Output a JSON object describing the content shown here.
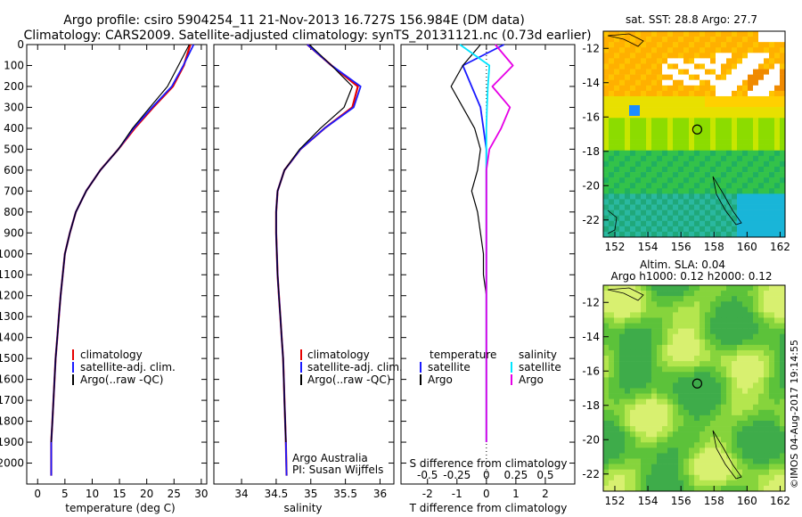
{
  "header": {
    "line1": "Argo profile: csiro 5904254_11 21-Nov-2013 16.727S 156.984E (DM data)",
    "line2": "Climatology: CARS2009. Satellite-adjusted climatology: synTS_20131121.nc (0.73d earlier)"
  },
  "colors": {
    "climatology": "#e60000",
    "satellite": "#1a1aff",
    "argo": "#000000",
    "sal_satellite": "#00e5ff",
    "sal_argo": "#e600e6"
  },
  "depth_ticks": [
    "0",
    "100",
    "200",
    "300",
    "400",
    "500",
    "600",
    "700",
    "800",
    "900",
    "1000",
    "1100",
    "1200",
    "1300",
    "1400",
    "1500",
    "1600",
    "1700",
    "1800",
    "1900",
    "2000"
  ],
  "legend": {
    "climatology": "climatology",
    "satellite_adj": "satellite-adj. clim.",
    "argo": "Argo(..raw -QC)",
    "temperature": "temperature",
    "salinity": "salinity",
    "satellite": "satellite",
    "argo_short": "Argo"
  },
  "credits": {
    "org": "Argo Australia",
    "pi": "PI: Susan Wijffels",
    "imos": "©IMOS 04-Aug-2017 19:14:55"
  },
  "maps": {
    "sst_title": "sat. SST: 28.8 Argo: 27.7",
    "sla_title1": "Altim. SLA: 0.04",
    "sla_title2": "Argo h1000: 0.12 h2000: 0.12",
    "lat_ticks": [
      "-12",
      "-14",
      "-16",
      "-18",
      "-20",
      "-22"
    ],
    "lon_ticks": [
      "152",
      "154",
      "156",
      "158",
      "160",
      "162"
    ],
    "argo_lat": -16.727,
    "argo_lon": 156.984
  },
  "chart_data": [
    {
      "type": "line",
      "xlabel": "temperature (deg C)",
      "xlim": [
        -2,
        31
      ],
      "xticks": [
        "0",
        "5",
        "10",
        "15",
        "20",
        "25",
        "30"
      ],
      "ylim": [
        2100,
        0
      ],
      "series": [
        {
          "name": "climatology",
          "x": [
            28.0,
            26.8,
            24.8,
            21.2,
            17.8,
            14.8,
            11.5,
            8.9,
            7.0,
            5.9,
            5.0,
            4.6,
            4.2,
            3.9,
            3.6,
            3.3,
            3.1,
            2.9,
            2.7,
            2.5,
            2.5
          ],
          "y": [
            0,
            100,
            200,
            300,
            400,
            500,
            600,
            700,
            800,
            900,
            1000,
            1100,
            1200,
            1300,
            1400,
            1500,
            1600,
            1700,
            1800,
            1900,
            2060
          ]
        },
        {
          "name": "satellite-adj. clim.",
          "x": [
            28.6,
            26.7,
            24.6,
            21.0,
            17.6,
            14.8,
            11.5,
            8.9,
            7.0,
            5.9,
            5.0,
            4.6,
            4.2,
            3.9,
            3.6,
            3.3,
            3.1,
            2.9,
            2.7,
            2.5,
            2.5
          ],
          "y": [
            0,
            100,
            200,
            300,
            400,
            500,
            600,
            700,
            800,
            900,
            1000,
            1100,
            1200,
            1300,
            1400,
            1500,
            1600,
            1700,
            1800,
            1900,
            2060
          ]
        },
        {
          "name": "Argo(..raw -QC)",
          "x": [
            27.8,
            25.8,
            23.8,
            20.6,
            17.4,
            14.8,
            11.5,
            8.9,
            7.0,
            5.9,
            5.0,
            4.6,
            4.2,
            3.9,
            3.6,
            3.3,
            3.1,
            2.9,
            2.7,
            2.5
          ],
          "y": [
            0,
            100,
            200,
            300,
            400,
            500,
            600,
            700,
            800,
            900,
            1000,
            1100,
            1200,
            1300,
            1400,
            1500,
            1600,
            1700,
            1800,
            1900
          ]
        }
      ]
    },
    {
      "type": "line",
      "xlabel": "salinity",
      "xlim": [
        33.6,
        36.2
      ],
      "xticks": [
        "34",
        "34.5",
        "35",
        "35.5",
        "36"
      ],
      "ylim": [
        2100,
        0
      ],
      "series": [
        {
          "name": "climatology",
          "x": [
            34.95,
            35.3,
            35.68,
            35.6,
            35.2,
            34.85,
            34.62,
            34.52,
            34.5,
            34.5,
            34.51,
            34.52,
            34.54,
            34.56,
            34.58,
            34.6,
            34.61,
            34.62,
            34.63,
            34.64,
            34.65
          ],
          "y": [
            0,
            100,
            200,
            300,
            400,
            500,
            600,
            700,
            800,
            900,
            1000,
            1100,
            1200,
            1300,
            1400,
            1500,
            1600,
            1700,
            1800,
            1900,
            2060
          ]
        },
        {
          "name": "satellite-adj. clim.",
          "x": [
            34.95,
            35.3,
            35.72,
            35.62,
            35.2,
            34.85,
            34.62,
            34.52,
            34.5,
            34.5,
            34.51,
            34.52,
            34.54,
            34.56,
            34.58,
            34.6,
            34.61,
            34.62,
            34.63,
            34.64,
            34.65
          ],
          "y": [
            0,
            100,
            200,
            300,
            400,
            500,
            600,
            700,
            800,
            900,
            1000,
            1100,
            1200,
            1300,
            1400,
            1500,
            1600,
            1700,
            1800,
            1900,
            2060
          ]
        },
        {
          "name": "Argo(..raw -QC)",
          "x": [
            34.98,
            35.3,
            35.6,
            35.48,
            35.14,
            34.84,
            34.62,
            34.52,
            34.5,
            34.5,
            34.51,
            34.52,
            34.54,
            34.56,
            34.58,
            34.6,
            34.61,
            34.62,
            34.63,
            34.64
          ],
          "y": [
            0,
            100,
            200,
            300,
            400,
            500,
            600,
            700,
            800,
            900,
            1000,
            1100,
            1200,
            1300,
            1400,
            1500,
            1600,
            1700,
            1800,
            1900
          ]
        }
      ]
    },
    {
      "type": "line",
      "xlabel": "T difference from climatology",
      "xlabel_top": "S difference from climatology",
      "xlim": [
        -2.9,
        3.0
      ],
      "xticks": [
        "-2",
        "-1",
        "0",
        "1",
        "2"
      ],
      "xticks_top": [
        "-0.5",
        "-0.25",
        "0",
        "0.25",
        "0.5"
      ],
      "ylim": [
        2100,
        0
      ],
      "series": [
        {
          "name": "temperature satellite",
          "x": [
            0.6,
            -0.8,
            -0.5,
            -0.2,
            -0.1,
            0,
            0,
            0,
            0,
            0,
            0,
            0,
            0,
            0,
            0,
            0,
            0,
            0,
            0,
            0
          ],
          "y": [
            0,
            100,
            200,
            300,
            400,
            500,
            600,
            700,
            800,
            900,
            1000,
            1100,
            1200,
            1300,
            1400,
            1500,
            1600,
            1700,
            1800,
            1900
          ]
        },
        {
          "name": "temperature Argo",
          "x": [
            -0.2,
            -0.8,
            -1.2,
            -0.8,
            -0.4,
            -0.2,
            -0.3,
            -0.5,
            -0.3,
            -0.2,
            -0.1,
            -0.1,
            0,
            0,
            0,
            0,
            0,
            0,
            0,
            0
          ],
          "y": [
            0,
            100,
            200,
            300,
            400,
            500,
            600,
            700,
            800,
            900,
            1000,
            1100,
            1200,
            1300,
            1400,
            1500,
            1600,
            1700,
            1800,
            1900
          ]
        },
        {
          "name": "salinity satellite",
          "x": [
            -0.9,
            0.1,
            0.05,
            0.02,
            0,
            0,
            0,
            0,
            0,
            0,
            0,
            0,
            0,
            0,
            0,
            0,
            0,
            0,
            0,
            0
          ],
          "y": [
            0,
            100,
            200,
            300,
            400,
            500,
            600,
            700,
            800,
            900,
            1000,
            1100,
            1200,
            1300,
            1400,
            1500,
            1600,
            1700,
            1800,
            1900
          ]
        },
        {
          "name": "salinity Argo",
          "x": [
            0.3,
            0.9,
            0.2,
            0.8,
            0.5,
            0.1,
            0,
            0,
            0,
            0,
            0,
            0,
            0,
            0,
            0,
            0,
            0,
            0,
            0,
            0
          ],
          "y": [
            0,
            100,
            200,
            300,
            400,
            500,
            600,
            700,
            800,
            900,
            1000,
            1100,
            1200,
            1300,
            1400,
            1500,
            1600,
            1700,
            1800,
            1900
          ]
        }
      ]
    }
  ]
}
